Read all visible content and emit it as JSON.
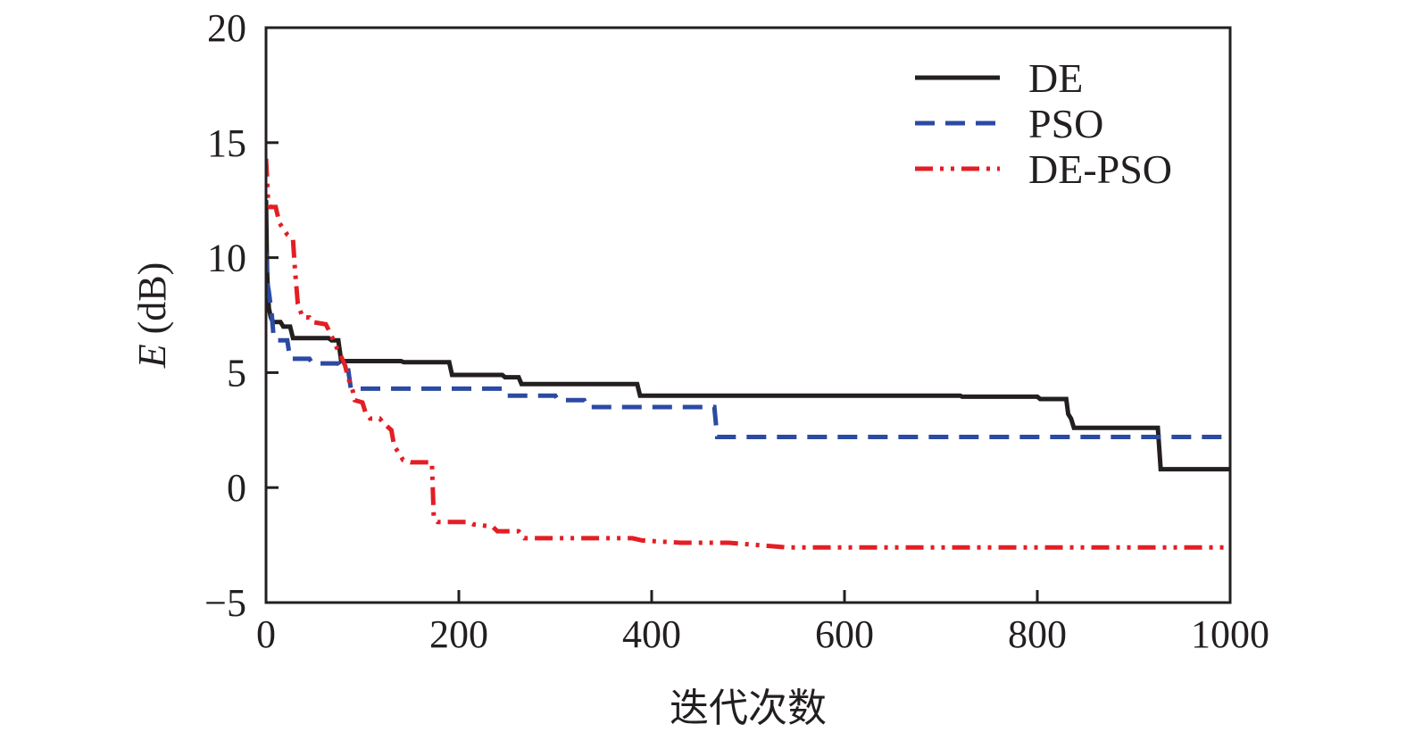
{
  "chart_data": {
    "type": "line",
    "xlabel": "迭代次数",
    "ylabel_italic": "E",
    "ylabel_unit": " (dB)",
    "xlim": [
      0,
      1000
    ],
    "ylim": [
      -5,
      20
    ],
    "xticks": [
      0,
      200,
      400,
      600,
      800,
      1000
    ],
    "yticks": [
      -5,
      0,
      5,
      10,
      15,
      20
    ],
    "ytick_labels": [
      "−5",
      "0",
      "5",
      "10",
      "15",
      "20"
    ],
    "grid": false,
    "legend_position": "top-right",
    "series": [
      {
        "name": "DE",
        "color": "#231f20",
        "style": "solid",
        "points": [
          [
            0,
            12.5
          ],
          [
            1,
            9.5
          ],
          [
            2,
            8.5
          ],
          [
            3,
            7.8
          ],
          [
            5,
            7.4
          ],
          [
            7,
            7.2
          ],
          [
            15,
            7.2
          ],
          [
            18,
            7.0
          ],
          [
            25,
            7.0
          ],
          [
            28,
            6.5
          ],
          [
            65,
            6.5
          ],
          [
            68,
            6.4
          ],
          [
            75,
            6.4
          ],
          [
            78,
            5.5
          ],
          [
            140,
            5.5
          ],
          [
            143,
            5.45
          ],
          [
            190,
            5.45
          ],
          [
            193,
            4.9
          ],
          [
            245,
            4.9
          ],
          [
            248,
            4.8
          ],
          [
            262,
            4.8
          ],
          [
            265,
            4.5
          ],
          [
            385,
            4.5
          ],
          [
            388,
            4.0
          ],
          [
            720,
            4.0
          ],
          [
            722,
            3.95
          ],
          [
            800,
            3.95
          ],
          [
            803,
            3.85
          ],
          [
            830,
            3.85
          ],
          [
            832,
            3.2
          ],
          [
            835,
            3.0
          ],
          [
            838,
            2.6
          ],
          [
            925,
            2.6
          ],
          [
            928,
            0.8
          ],
          [
            1000,
            0.8
          ]
        ]
      },
      {
        "name": "PSO",
        "color": "#2b4aa3",
        "style": "dashed",
        "points": [
          [
            0,
            10.2
          ],
          [
            1,
            9.0
          ],
          [
            3,
            8.5
          ],
          [
            6,
            7.5
          ],
          [
            8,
            6.5
          ],
          [
            10,
            6.4
          ],
          [
            22,
            6.4
          ],
          [
            25,
            5.6
          ],
          [
            45,
            5.6
          ],
          [
            48,
            5.4
          ],
          [
            75,
            5.4
          ],
          [
            78,
            5.2
          ],
          [
            85,
            5.2
          ],
          [
            88,
            4.3
          ],
          [
            245,
            4.3
          ],
          [
            248,
            4.0
          ],
          [
            300,
            4.0
          ],
          [
            303,
            3.8
          ],
          [
            330,
            3.8
          ],
          [
            333,
            3.5
          ],
          [
            465,
            3.5
          ],
          [
            468,
            2.2
          ],
          [
            1000,
            2.2
          ]
        ]
      },
      {
        "name": "DE-PSO",
        "color": "#e31e24",
        "style": "dash-dot-dot",
        "points": [
          [
            0,
            14.3
          ],
          [
            1,
            13.5
          ],
          [
            2,
            12.5
          ],
          [
            4,
            12.2
          ],
          [
            10,
            12.2
          ],
          [
            14,
            11.5
          ],
          [
            22,
            11.0
          ],
          [
            28,
            10.8
          ],
          [
            30,
            9.5
          ],
          [
            33,
            8.0
          ],
          [
            38,
            7.4
          ],
          [
            45,
            7.4
          ],
          [
            48,
            7.2
          ],
          [
            62,
            7.1
          ],
          [
            68,
            6.6
          ],
          [
            72,
            6.2
          ],
          [
            78,
            5.7
          ],
          [
            82,
            5.3
          ],
          [
            85,
            4.8
          ],
          [
            90,
            4.2
          ],
          [
            92,
            3.8
          ],
          [
            100,
            3.7
          ],
          [
            103,
            3.3
          ],
          [
            108,
            3.0
          ],
          [
            118,
            3.0
          ],
          [
            122,
            2.8
          ],
          [
            130,
            2.5
          ],
          [
            133,
            1.8
          ],
          [
            138,
            1.5
          ],
          [
            142,
            1.2
          ],
          [
            150,
            1.1
          ],
          [
            172,
            1.1
          ],
          [
            174,
            -1.3
          ],
          [
            178,
            -1.5
          ],
          [
            210,
            -1.5
          ],
          [
            215,
            -1.6
          ],
          [
            235,
            -1.7
          ],
          [
            240,
            -1.9
          ],
          [
            262,
            -1.9
          ],
          [
            268,
            -2.2
          ],
          [
            380,
            -2.2
          ],
          [
            390,
            -2.3
          ],
          [
            430,
            -2.4
          ],
          [
            480,
            -2.4
          ],
          [
            510,
            -2.5
          ],
          [
            540,
            -2.6
          ],
          [
            1000,
            -2.6
          ]
        ]
      }
    ]
  }
}
